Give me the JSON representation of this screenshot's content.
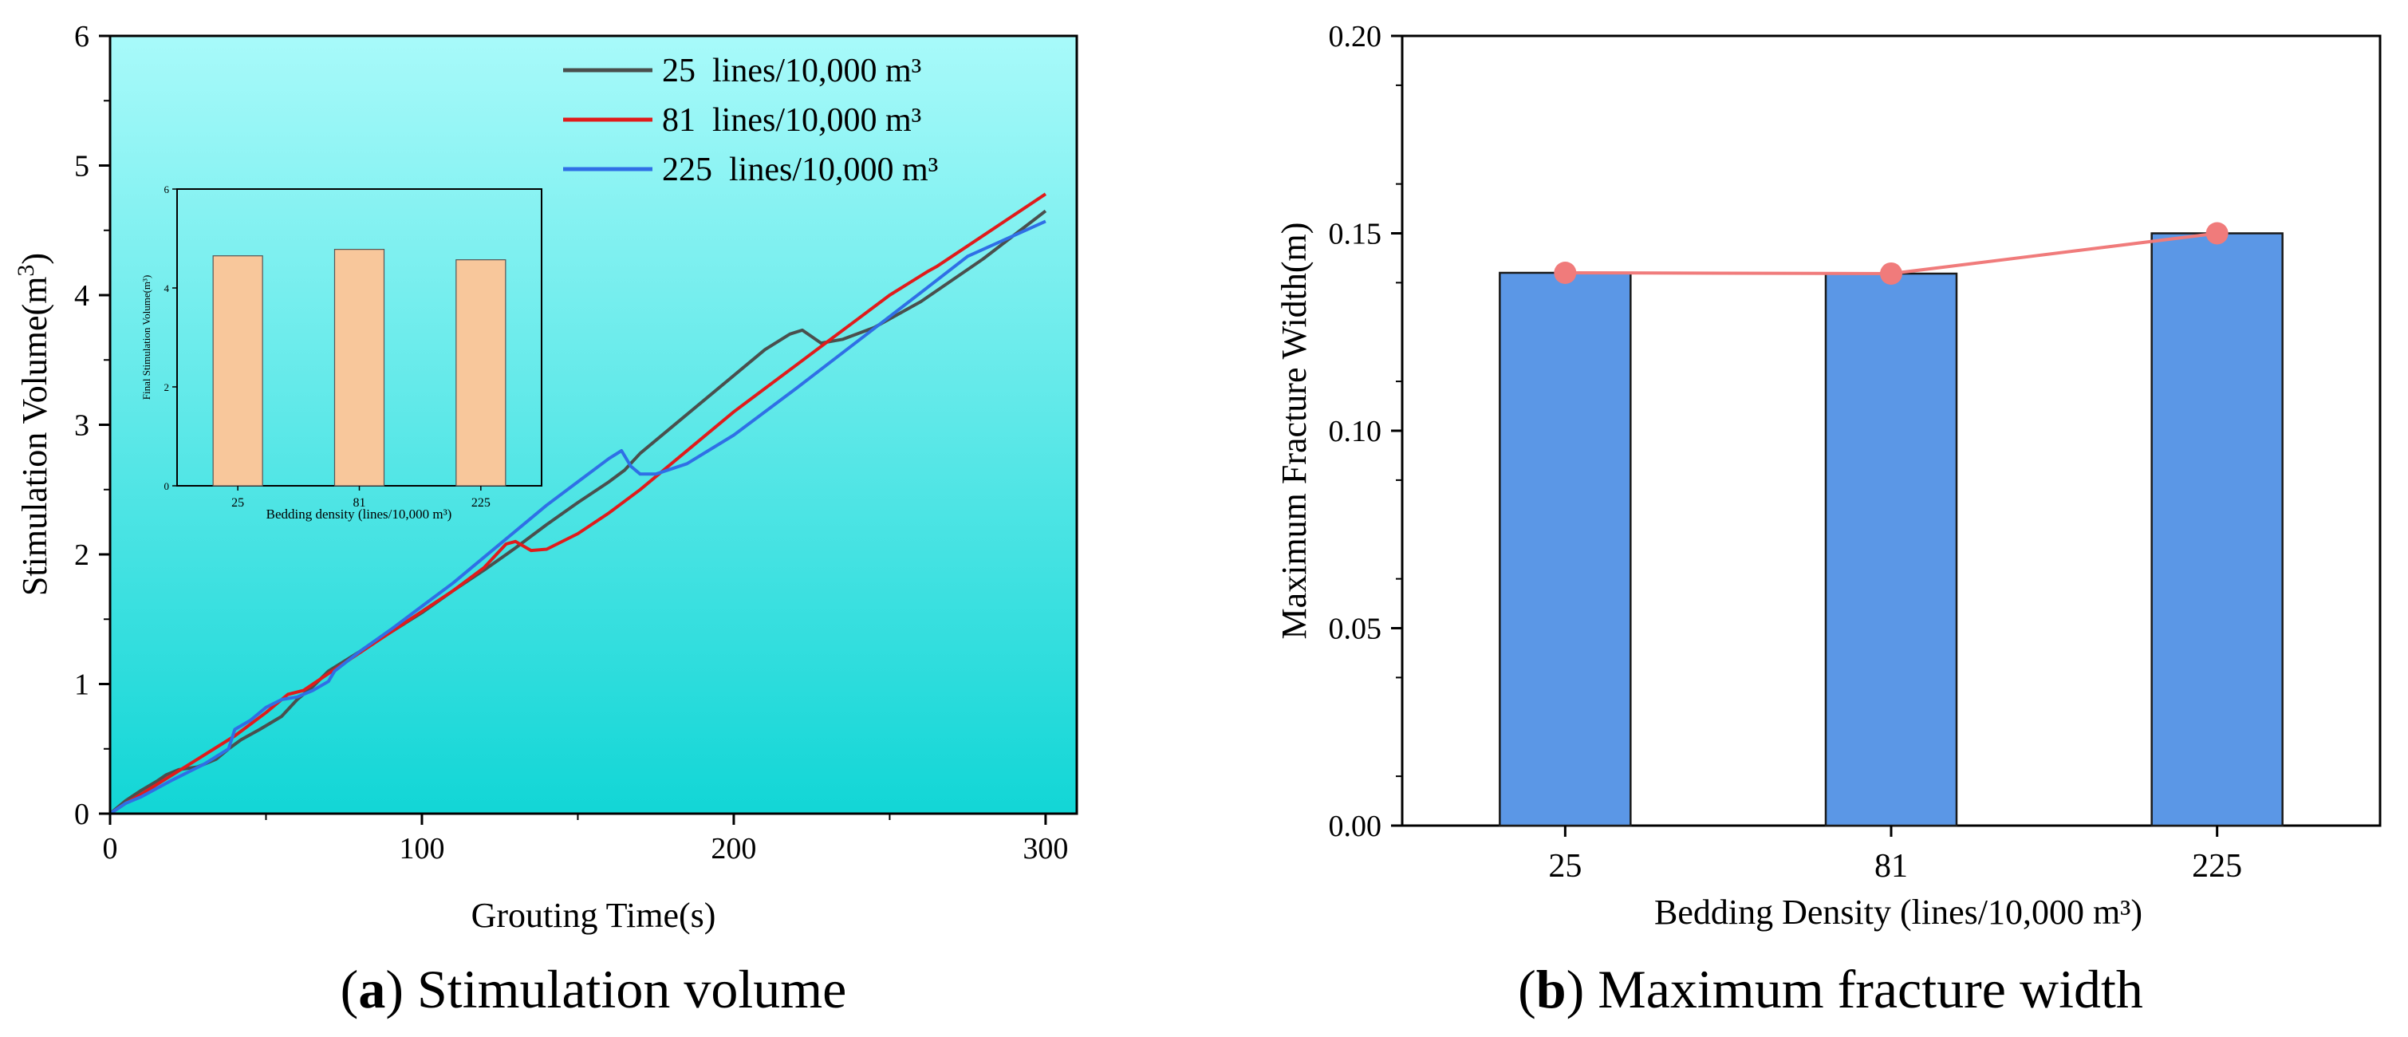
{
  "colors": {
    "series_25": "#4a4f4d",
    "series_81": "#e01b1b",
    "series_225": "#2f6fe6",
    "gradient_top": "#a8fafa",
    "gradient_bottom": "#12d6d6",
    "inset_bar": "#f8c79b",
    "bar_b": "#5b97e6",
    "line_b": "#f07b7b"
  },
  "captions": {
    "a": {
      "letter": "a",
      "text": "Stimulation volume"
    },
    "b": {
      "letter": "b",
      "text": "Maximum fracture width"
    }
  },
  "chart_data": [
    {
      "id": "a",
      "type": "line",
      "title": "",
      "xlabel": "Grouting Time(s)",
      "ylabel_main": "Stimulation Volume(m",
      "ylabel_sup": "3",
      "ylabel_end": ")",
      "xlim": [
        0,
        310
      ],
      "ylim": [
        0,
        6
      ],
      "xticks": [
        0,
        100,
        200,
        300
      ],
      "yticks": [
        0,
        1,
        2,
        3,
        4,
        5,
        6
      ],
      "legend_position": "top-right",
      "series": [
        {
          "name": "25  lines/10,000 m³",
          "color_key": "series_25",
          "x": [
            0,
            5,
            10,
            15,
            18,
            22,
            28,
            34,
            38,
            42,
            48,
            55,
            60,
            65,
            70,
            80,
            90,
            100,
            110,
            120,
            130,
            140,
            150,
            160,
            165,
            170,
            180,
            190,
            200,
            210,
            218,
            222,
            225,
            228,
            235,
            245,
            260,
            280,
            300
          ],
          "y": [
            0,
            0.1,
            0.18,
            0.25,
            0.3,
            0.34,
            0.36,
            0.42,
            0.5,
            0.57,
            0.65,
            0.75,
            0.88,
            0.98,
            1.1,
            1.25,
            1.4,
            1.55,
            1.72,
            1.88,
            2.05,
            2.23,
            2.4,
            2.56,
            2.65,
            2.78,
            2.98,
            3.18,
            3.38,
            3.58,
            3.7,
            3.73,
            3.68,
            3.63,
            3.66,
            3.75,
            3.95,
            4.28,
            4.65
          ]
        },
        {
          "name": "81  lines/10,000 m³",
          "color_key": "series_81",
          "x": [
            0,
            5,
            10,
            20,
            28,
            40,
            50,
            57,
            62,
            70,
            80,
            90,
            100,
            110,
            120,
            127,
            130,
            135,
            140,
            150,
            160,
            170,
            180,
            190,
            200,
            210,
            220,
            230,
            240,
            250,
            262,
            265,
            280,
            300
          ],
          "y": [
            0,
            0.08,
            0.15,
            0.3,
            0.42,
            0.6,
            0.78,
            0.92,
            0.95,
            1.08,
            1.24,
            1.4,
            1.56,
            1.72,
            1.9,
            2.08,
            2.1,
            2.03,
            2.04,
            2.16,
            2.32,
            2.5,
            2.7,
            2.9,
            3.1,
            3.28,
            3.46,
            3.64,
            3.82,
            4.0,
            4.18,
            4.22,
            4.46,
            4.78
          ]
        },
        {
          "name": "225  lines/10,000 m³",
          "color_key": "series_225",
          "x": [
            0,
            5,
            10,
            20,
            30,
            38,
            40,
            45,
            50,
            55,
            60,
            65,
            70,
            72,
            80,
            90,
            100,
            110,
            120,
            130,
            140,
            150,
            160,
            164,
            167,
            170,
            175,
            185,
            200,
            220,
            240,
            260,
            275,
            300
          ],
          "y": [
            0,
            0.08,
            0.13,
            0.26,
            0.38,
            0.5,
            0.65,
            0.72,
            0.82,
            0.88,
            0.9,
            0.95,
            1.02,
            1.1,
            1.25,
            1.42,
            1.6,
            1.78,
            1.98,
            2.18,
            2.38,
            2.56,
            2.74,
            2.8,
            2.68,
            2.62,
            2.62,
            2.7,
            2.92,
            3.28,
            3.65,
            4.02,
            4.3,
            4.57
          ]
        }
      ],
      "inset": {
        "type": "bar",
        "xlabel": "Bedding density (lines/10,000 m³)",
        "ylabel": "Final Stimulation Volume(m³)",
        "categories": [
          "25",
          "81",
          "225"
        ],
        "values": [
          4.65,
          4.78,
          4.57
        ],
        "ylim": [
          0,
          6
        ],
        "yticks": [
          0,
          2,
          4,
          6
        ]
      }
    },
    {
      "id": "b",
      "type": "bar",
      "title": "",
      "xlabel": "Bedding Density (lines/10,000 m³)",
      "ylabel": "Maximum Fracture Width(m)",
      "categories": [
        "25",
        "81",
        "225"
      ],
      "values": [
        0.14,
        0.1398,
        0.15
      ],
      "line_overlay": [
        0.14,
        0.1398,
        0.15
      ],
      "ylim": [
        0,
        0.2
      ],
      "yticks": [
        "0.00",
        "0.05",
        "0.10",
        "0.15",
        "0.20"
      ]
    }
  ]
}
